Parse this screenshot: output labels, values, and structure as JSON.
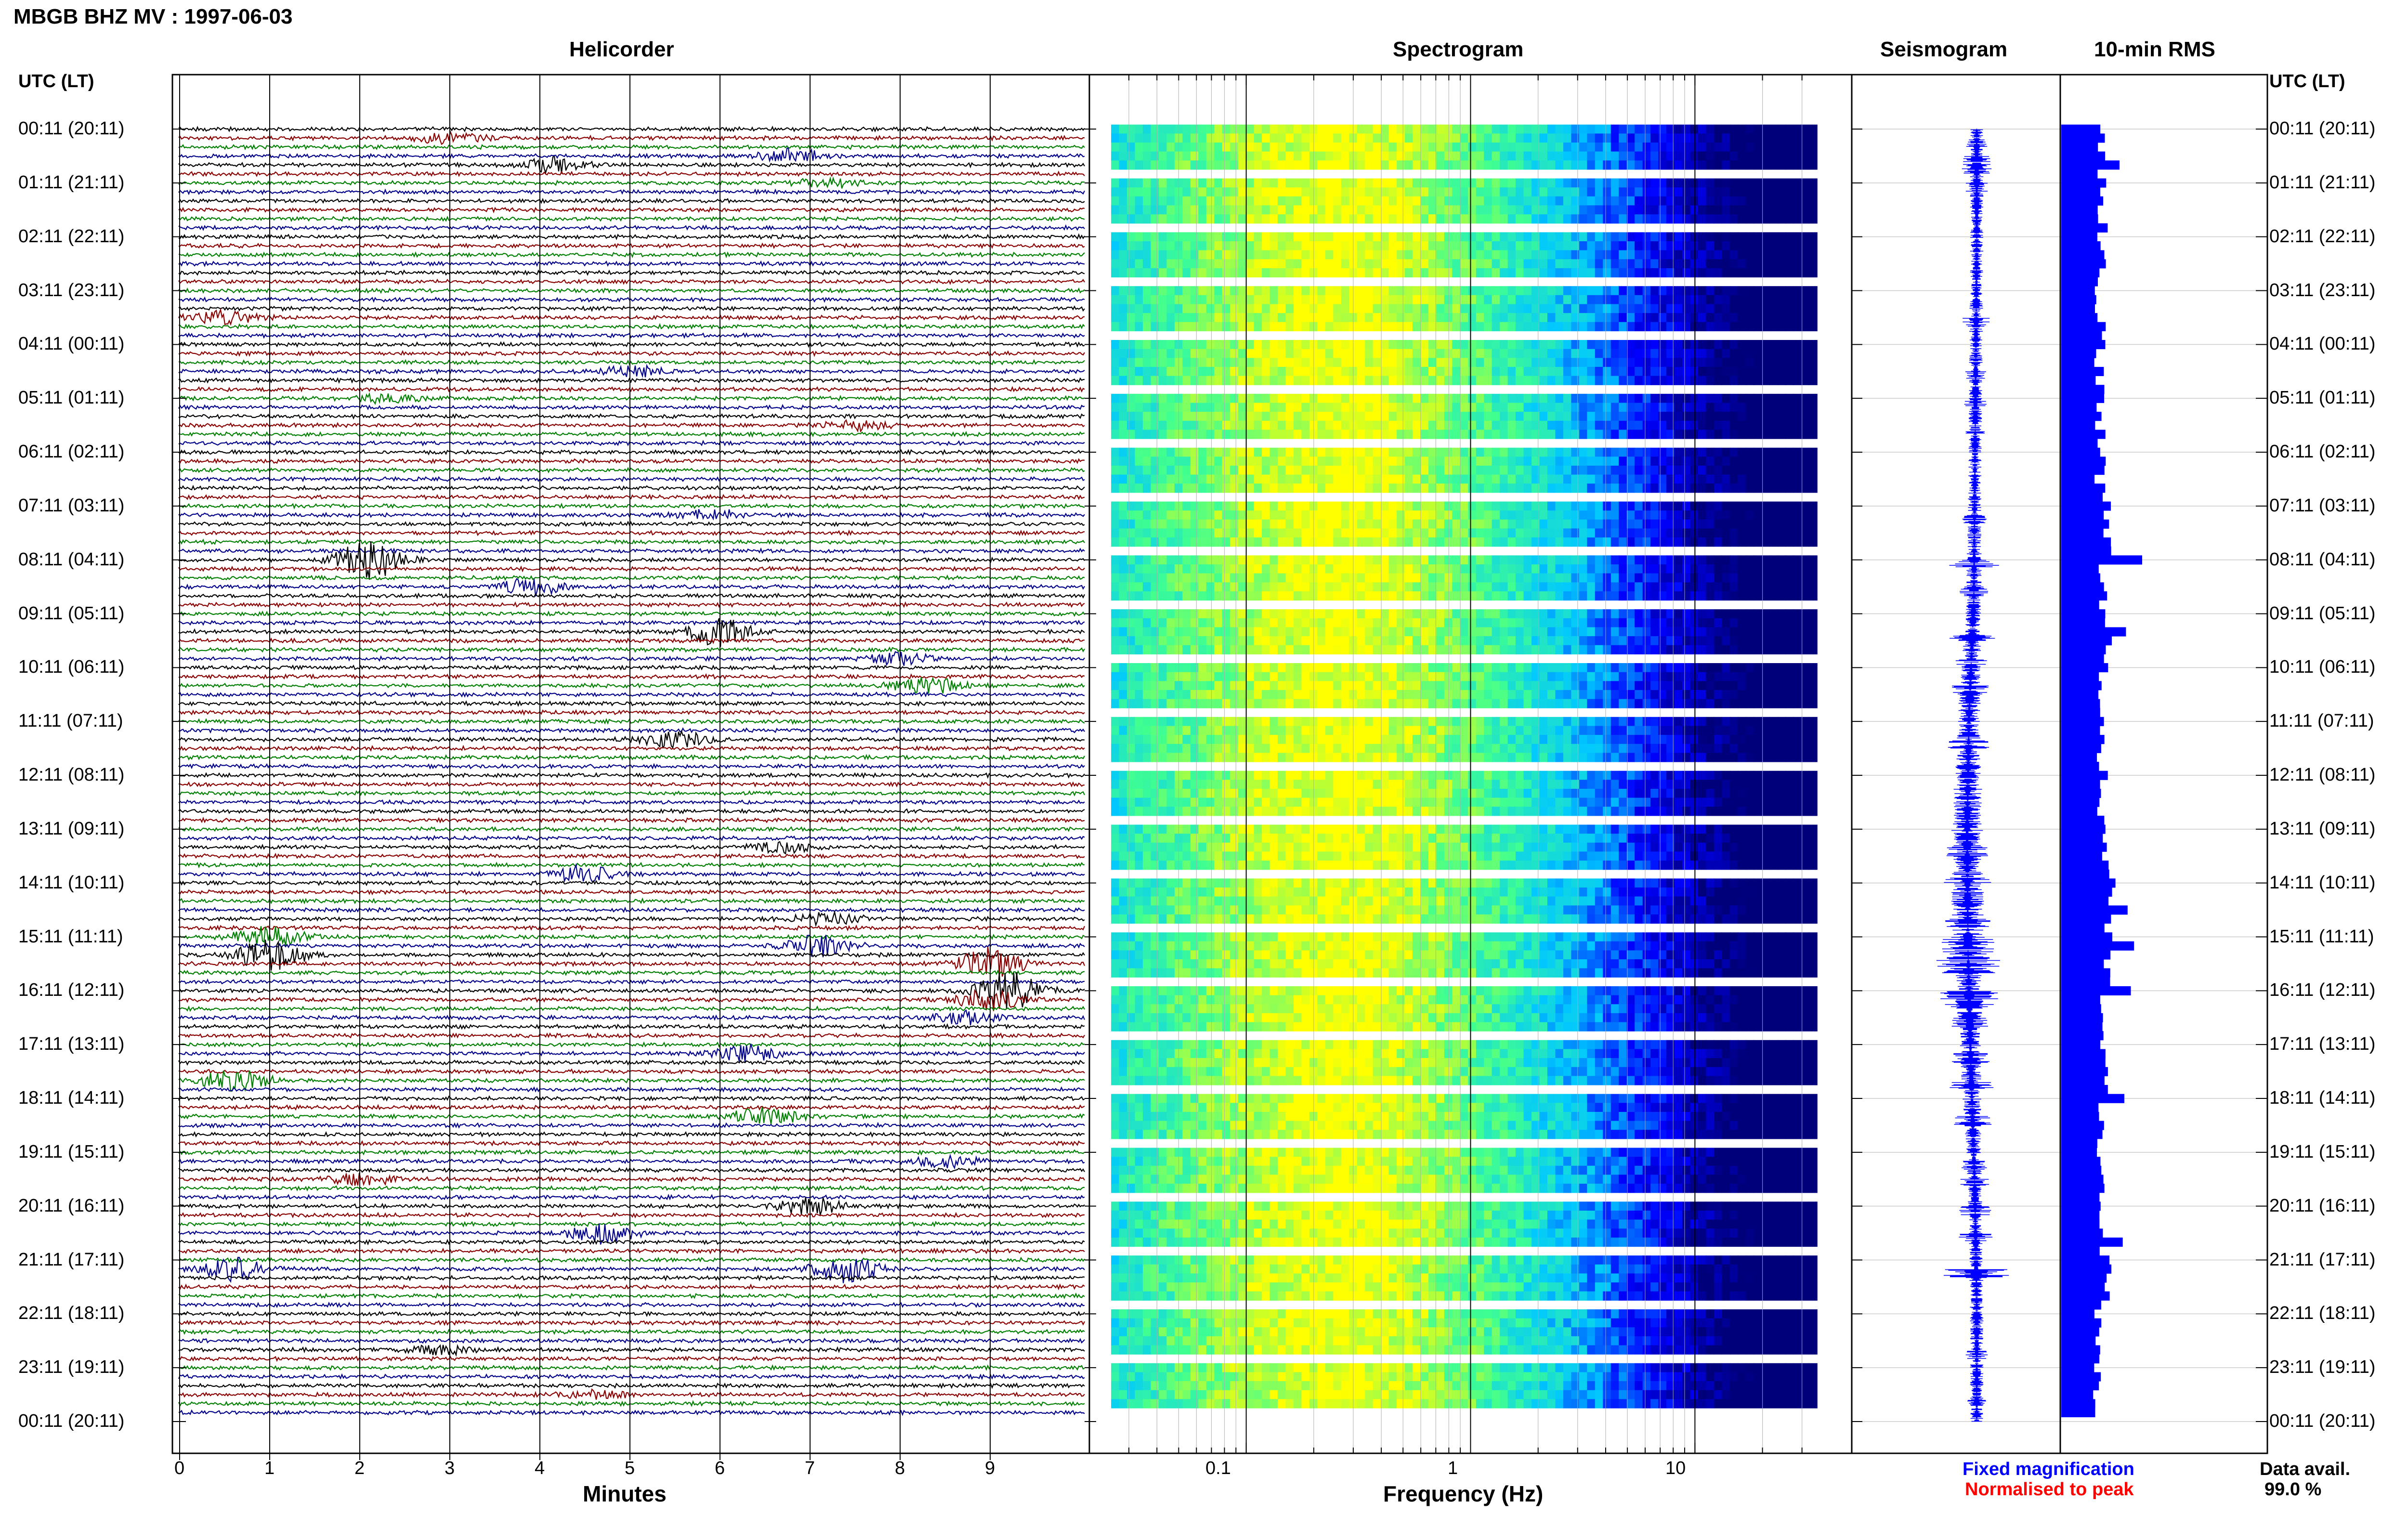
{
  "title": "MBGB BHZ MV : 1997-06-03",
  "headers": {
    "helicorder": "Helicorder",
    "spectrogram": "Spectrogram",
    "seismogram": "Seismogram",
    "rms": "10-min RMS"
  },
  "time_axis_label": "UTC (LT)",
  "time_labels": [
    "00:11 (20:11)",
    "01:11 (21:11)",
    "02:11 (22:11)",
    "03:11 (23:11)",
    "04:11 (00:11)",
    "05:11 (01:11)",
    "06:11 (02:11)",
    "07:11 (03:11)",
    "08:11 (04:11)",
    "09:11 (05:11)",
    "10:11 (06:11)",
    "11:11 (07:11)",
    "12:11 (08:11)",
    "13:11 (09:11)",
    "14:11 (10:11)",
    "15:11 (11:11)",
    "16:11 (12:11)",
    "17:11 (13:11)",
    "18:11 (14:11)",
    "19:11 (15:11)",
    "20:11 (16:11)",
    "21:11 (17:11)",
    "22:11 (18:11)",
    "23:11 (19:11)",
    "00:11 (20:11)"
  ],
  "x_axes": {
    "minutes_label": "Minutes",
    "minutes_ticks": [
      "0",
      "1",
      "2",
      "3",
      "4",
      "5",
      "6",
      "7",
      "8",
      "9"
    ],
    "frequency_label": "Frequency (Hz)",
    "frequency_ticks": [
      "0.1",
      "1",
      "10"
    ]
  },
  "legend": {
    "fixed": "Fixed magnification",
    "normalised": "Normalised to peak",
    "fixed_color": "#0000ff",
    "normalised_color": "#ff0000"
  },
  "data_availability": {
    "label": "Data avail.",
    "value": "99.0 %"
  },
  "colors": {
    "trace_cycle": [
      "#000000",
      "#8b0000",
      "#008000",
      "#00008b"
    ],
    "rms_bar": "#0000ff",
    "seismogram": "#0000ff"
  },
  "chart_data": [
    {
      "type": "heatmap",
      "name": "helicorder",
      "x_unit": "minutes",
      "xlim": [
        0,
        10
      ],
      "rows": 144,
      "row_minutes": 10,
      "events": [
        {
          "row": 1,
          "minute": 3.0,
          "amp": 1.0
        },
        {
          "row": 3,
          "minute": 6.8,
          "amp": 1.2
        },
        {
          "row": 4,
          "minute": 4.2,
          "amp": 1.5
        },
        {
          "row": 6,
          "minute": 7.2,
          "amp": 0.8
        },
        {
          "row": 21,
          "minute": 0.5,
          "amp": 1.2
        },
        {
          "row": 27,
          "minute": 5.0,
          "amp": 1.0
        },
        {
          "row": 30,
          "minute": 2.3,
          "amp": 0.8
        },
        {
          "row": 33,
          "minute": 7.5,
          "amp": 0.8
        },
        {
          "row": 43,
          "minute": 5.9,
          "amp": 1.0
        },
        {
          "row": 48,
          "minute": 2.1,
          "amp": 3.5
        },
        {
          "row": 51,
          "minute": 3.9,
          "amp": 1.5
        },
        {
          "row": 56,
          "minute": 6.0,
          "amp": 2.5
        },
        {
          "row": 59,
          "minute": 8.0,
          "amp": 1.2
        },
        {
          "row": 62,
          "minute": 8.3,
          "amp": 1.5
        },
        {
          "row": 68,
          "minute": 5.5,
          "amp": 1.5
        },
        {
          "row": 80,
          "minute": 6.7,
          "amp": 1.0
        },
        {
          "row": 83,
          "minute": 4.5,
          "amp": 1.5
        },
        {
          "row": 88,
          "minute": 7.2,
          "amp": 1.2
        },
        {
          "row": 90,
          "minute": 1.0,
          "amp": 2.0
        },
        {
          "row": 91,
          "minute": 7.1,
          "amp": 2.0
        },
        {
          "row": 92,
          "minute": 1.0,
          "amp": 3.0
        },
        {
          "row": 93,
          "minute": 9.0,
          "amp": 3.0
        },
        {
          "row": 96,
          "minute": 9.2,
          "amp": 3.5
        },
        {
          "row": 97,
          "minute": 9.0,
          "amp": 2.0
        },
        {
          "row": 99,
          "minute": 8.7,
          "amp": 1.2
        },
        {
          "row": 103,
          "minute": 6.3,
          "amp": 1.5
        },
        {
          "row": 106,
          "minute": 0.6,
          "amp": 2.5
        },
        {
          "row": 110,
          "minute": 6.5,
          "amp": 1.8
        },
        {
          "row": 115,
          "minute": 8.5,
          "amp": 1.0
        },
        {
          "row": 117,
          "minute": 2.0,
          "amp": 1.2
        },
        {
          "row": 120,
          "minute": 7.0,
          "amp": 1.5
        },
        {
          "row": 123,
          "minute": 4.7,
          "amp": 1.8
        },
        {
          "row": 127,
          "minute": 0.6,
          "amp": 2.2
        },
        {
          "row": 127,
          "minute": 7.4,
          "amp": 2.5
        },
        {
          "row": 136,
          "minute": 2.9,
          "amp": 0.8
        },
        {
          "row": 141,
          "minute": 4.6,
          "amp": 0.8
        }
      ]
    },
    {
      "type": "heatmap",
      "name": "spectrogram",
      "x_scale": "log",
      "xlim": [
        0.02,
        50
      ],
      "xlabel": "Frequency (Hz)",
      "peak_band_hz": [
        0.2,
        0.5
      ],
      "colorscale": [
        "#00007a",
        "#0000ff",
        "#00c8ff",
        "#40ff90",
        "#ffff00"
      ]
    },
    {
      "type": "line",
      "name": "seismogram",
      "x": [
        "00:11",
        "03:11",
        "06:11",
        "09:11",
        "12:11",
        "14:11",
        "16:11",
        "18:11",
        "20:11",
        "21:11",
        "23:11",
        "00:11"
      ],
      "y": [
        0.45,
        0.45,
        0.4,
        0.35,
        0.3,
        0.05,
        -0.05,
        0.0,
        0.15,
        0.35,
        0.45,
        0.45
      ]
    },
    {
      "type": "bar",
      "name": "10-min RMS",
      "orientation": "horizontal",
      "categories": [
        "00:11 (20:11)",
        "01:11 (21:11)",
        "02:11 (22:11)",
        "03:11 (23:11)",
        "04:11 (00:11)",
        "05:11 (01:11)",
        "06:11 (02:11)",
        "07:11 (03:11)",
        "08:11 (04:11)",
        "09:11 (05:11)",
        "10:11 (06:11)",
        "11:11 (07:11)",
        "12:11 (08:11)",
        "13:11 (09:11)",
        "14:11 (10:11)",
        "15:11 (11:11)",
        "16:11 (12:11)",
        "17:11 (13:11)",
        "18:11 (14:11)",
        "19:11 (15:11)",
        "20:11 (16:11)",
        "21:11 (17:11)",
        "22:11 (18:11)",
        "23:11 (19:11)"
      ],
      "values": [
        0.62,
        0.6,
        0.58,
        0.55,
        0.55,
        0.55,
        0.55,
        0.7,
        0.65,
        0.7,
        0.62,
        0.54,
        0.6,
        0.72,
        0.78,
        0.75,
        0.6,
        0.65,
        0.58,
        0.58,
        0.6,
        0.7,
        0.52,
        0.5
      ],
      "peaks": [
        {
          "row": 4,
          "value": 0.72
        },
        {
          "row": 48,
          "value": 1.0
        },
        {
          "row": 56,
          "value": 0.8
        },
        {
          "row": 87,
          "value": 0.82
        },
        {
          "row": 91,
          "value": 0.9
        },
        {
          "row": 96,
          "value": 0.86
        },
        {
          "row": 108,
          "value": 0.78
        },
        {
          "row": 124,
          "value": 0.76
        }
      ],
      "xlim": [
        0,
        1
      ]
    }
  ]
}
